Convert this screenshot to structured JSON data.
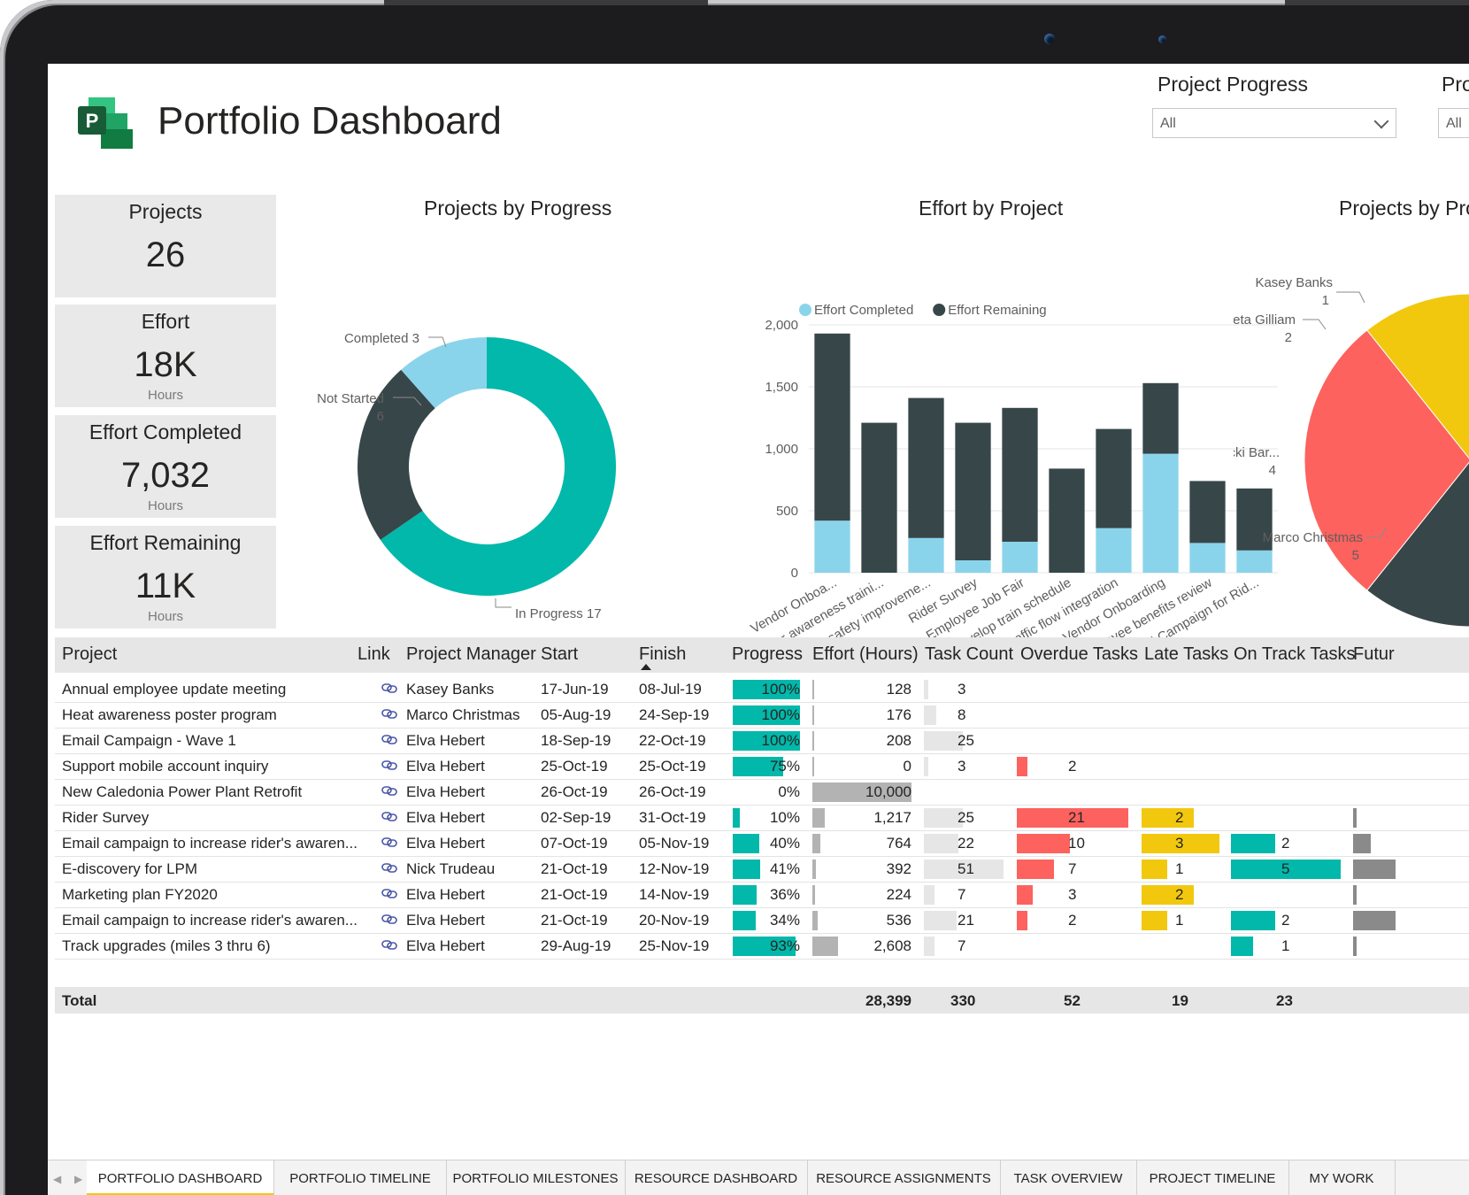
{
  "header": {
    "title": "Portfolio Dashboard",
    "filters": [
      {
        "label": "Project Progress",
        "value": "All"
      },
      {
        "label": "Pro",
        "value": "All"
      }
    ]
  },
  "kpis": [
    {
      "label": "Projects",
      "value": "26",
      "unit": ""
    },
    {
      "label": "Effort",
      "value": "18K",
      "unit": "Hours"
    },
    {
      "label": "Effort Completed",
      "value": "7,032",
      "unit": "Hours"
    },
    {
      "label": "Effort Remaining",
      "value": "11K",
      "unit": "Hours"
    }
  ],
  "chart_data": [
    {
      "type": "pie",
      "variant": "donut",
      "title": "Projects by Progress",
      "slices": [
        {
          "name": "In Progress",
          "value": 17,
          "color": "#01b8aa"
        },
        {
          "name": "Not Started",
          "value": 6,
          "color": "#374649"
        },
        {
          "name": "Completed",
          "value": 3,
          "color": "#8ad4eb"
        }
      ]
    },
    {
      "type": "bar",
      "stacked": true,
      "title": "Effort by Project",
      "categories": [
        "Vendor Onboa...",
        "Driver awareness traini...",
        "Rider safety improveme...",
        "Rider Survey",
        "Employee Job Fair",
        "Develop train schedule",
        "Traffic flow integration",
        "Vendor Onboarding",
        "Employee benefits review",
        "Email Campaign for Rid..."
      ],
      "series": [
        {
          "name": "Effort Completed",
          "color": "#8ad4eb",
          "values": [
            420,
            0,
            280,
            100,
            250,
            0,
            360,
            960,
            240,
            180
          ]
        },
        {
          "name": "Effort Remaining",
          "color": "#374649",
          "values": [
            1510,
            1210,
            1130,
            1110,
            1080,
            840,
            800,
            570,
            500,
            500
          ]
        }
      ],
      "yticks": [
        "0",
        "500",
        "1,000",
        "1,500",
        "2,000"
      ],
      "ylim": [
        0,
        2000
      ],
      "legend": "top-left"
    },
    {
      "type": "pie",
      "title": "Projects by Pro",
      "slices": [
        {
          "name": "Marco Christmas",
          "value": 5,
          "label": "5",
          "color": "#374649"
        },
        {
          "name": "Vicki Bar...",
          "value": 4,
          "label": "4",
          "color": "#fd625e"
        },
        {
          "name": "Greta Gilliam",
          "value": 2,
          "label": "2",
          "color": "#f2c80f"
        },
        {
          "name": "Kasey Banks",
          "value": 1,
          "label": "1",
          "color": "#5f6b6d"
        },
        {
          "name": "",
          "value": 1,
          "color": "#8ad4eb"
        },
        {
          "name": "",
          "value": 1,
          "color": "#fe9666"
        }
      ]
    }
  ],
  "table": {
    "columns": [
      "Project",
      "Link",
      "Project Manager",
      "Start",
      "Finish",
      "Progress",
      "Effort (Hours)",
      "Task Count",
      "Overdue Tasks",
      "Late Tasks",
      "On Track Tasks",
      "Futur"
    ],
    "rows": [
      {
        "project": "Annual employee update meeting",
        "pm": "Kasey Banks",
        "start": "17-Jun-19",
        "finish": "08-Jul-19",
        "progress": "100%",
        "progress_v": 1.0,
        "effort": "128",
        "effort_v": 128,
        "tasks": "3",
        "tasks_v": 3,
        "overdue": "",
        "overdue_v": 0,
        "late": "",
        "late_v": 0,
        "ontrack": "",
        "ontrack_v": 0,
        "future_v": 0
      },
      {
        "project": "Heat awareness poster program",
        "pm": "Marco Christmas",
        "start": "05-Aug-19",
        "finish": "24-Sep-19",
        "progress": "100%",
        "progress_v": 1.0,
        "effort": "176",
        "effort_v": 176,
        "tasks": "8",
        "tasks_v": 8,
        "overdue": "",
        "overdue_v": 0,
        "late": "",
        "late_v": 0,
        "ontrack": "",
        "ontrack_v": 0,
        "future_v": 0
      },
      {
        "project": "Email Campaign - Wave 1",
        "pm": "Elva Hebert",
        "start": "18-Sep-19",
        "finish": "22-Oct-19",
        "progress": "100%",
        "progress_v": 1.0,
        "effort": "208",
        "effort_v": 208,
        "tasks": "25",
        "tasks_v": 25,
        "overdue": "",
        "overdue_v": 0,
        "late": "",
        "late_v": 0,
        "ontrack": "",
        "ontrack_v": 0,
        "future_v": 0
      },
      {
        "project": "Support mobile account inquiry",
        "pm": "Elva Hebert",
        "start": "25-Oct-19",
        "finish": "25-Oct-19",
        "progress": "75%",
        "progress_v": 0.75,
        "effort": "0",
        "effort_v": 0,
        "tasks": "3",
        "tasks_v": 3,
        "overdue": "2",
        "overdue_v": 2,
        "late": "",
        "late_v": 0,
        "ontrack": "",
        "ontrack_v": 0,
        "future_v": 0
      },
      {
        "project": "New Caledonia Power Plant Retrofit",
        "pm": "Elva Hebert",
        "start": "26-Oct-19",
        "finish": "26-Oct-19",
        "progress": "0%",
        "progress_v": 0,
        "effort": "10,000",
        "effort_v": 10000,
        "tasks": "",
        "tasks_v": 0,
        "overdue": "",
        "overdue_v": 0,
        "late": "",
        "late_v": 0,
        "ontrack": "",
        "ontrack_v": 0,
        "future_v": 0
      },
      {
        "project": "Rider Survey",
        "pm": "Elva Hebert",
        "start": "02-Sep-19",
        "finish": "31-Oct-19",
        "progress": "10%",
        "progress_v": 0.1,
        "effort": "1,217",
        "effort_v": 1217,
        "tasks": "25",
        "tasks_v": 25,
        "overdue": "21",
        "overdue_v": 21,
        "late": "2",
        "late_v": 2,
        "ontrack": "",
        "ontrack_v": 0,
        "future_v": 1
      },
      {
        "project": "Email campaign to increase rider's awaren...",
        "pm": "Elva Hebert",
        "start": "07-Oct-19",
        "finish": "05-Nov-19",
        "progress": "40%",
        "progress_v": 0.4,
        "effort": "764",
        "effort_v": 764,
        "tasks": "22",
        "tasks_v": 22,
        "overdue": "10",
        "overdue_v": 10,
        "late": "3",
        "late_v": 3,
        "ontrack": "2",
        "ontrack_v": 2,
        "future_v": 5
      },
      {
        "project": "E-discovery for LPM",
        "pm": "Nick Trudeau",
        "start": "21-Oct-19",
        "finish": "12-Nov-19",
        "progress": "41%",
        "progress_v": 0.41,
        "effort": "392",
        "effort_v": 392,
        "tasks": "51",
        "tasks_v": 51,
        "overdue": "7",
        "overdue_v": 7,
        "late": "1",
        "late_v": 1,
        "ontrack": "5",
        "ontrack_v": 5,
        "future_v": 12
      },
      {
        "project": "Marketing plan FY2020",
        "pm": "Elva Hebert",
        "start": "21-Oct-19",
        "finish": "14-Nov-19",
        "progress": "36%",
        "progress_v": 0.36,
        "effort": "224",
        "effort_v": 224,
        "tasks": "7",
        "tasks_v": 7,
        "overdue": "3",
        "overdue_v": 3,
        "late": "2",
        "late_v": 2,
        "ontrack": "",
        "ontrack_v": 0,
        "future_v": 1
      },
      {
        "project": "Email campaign to increase rider's awaren...",
        "pm": "Elva Hebert",
        "start": "21-Oct-19",
        "finish": "20-Nov-19",
        "progress": "34%",
        "progress_v": 0.34,
        "effort": "536",
        "effort_v": 536,
        "tasks": "21",
        "tasks_v": 21,
        "overdue": "2",
        "overdue_v": 2,
        "late": "1",
        "late_v": 1,
        "ontrack": "2",
        "ontrack_v": 2,
        "future_v": 12
      },
      {
        "project": "Track upgrades (miles 3 thru 6)",
        "pm": "Elva Hebert",
        "start": "29-Aug-19",
        "finish": "25-Nov-19",
        "progress": "93%",
        "progress_v": 0.93,
        "effort": "2,608",
        "effort_v": 2608,
        "tasks": "7",
        "tasks_v": 7,
        "overdue": "",
        "overdue_v": 0,
        "late": "",
        "late_v": 0,
        "ontrack": "1",
        "ontrack_v": 1,
        "future_v": 1
      }
    ],
    "total": {
      "label": "Total",
      "effort": "28,399",
      "tasks": "330",
      "overdue": "52",
      "late": "19",
      "ontrack": "23"
    }
  },
  "tabs": [
    "PORTFOLIO DASHBOARD",
    "PORTFOLIO TIMELINE",
    "PORTFOLIO MILESTONES",
    "RESOURCE DASHBOARD",
    "RESOURCE ASSIGNMENTS",
    "TASK OVERVIEW",
    "PROJECT TIMELINE",
    "MY WORK"
  ],
  "colors": {
    "teal": "#01b8aa",
    "dark": "#374649",
    "light_blue": "#8ad4eb",
    "red": "#fd625e",
    "yellow": "#f2c80f",
    "gray_bar": "#b3b3b3",
    "tab_accent": "#f2c811"
  }
}
